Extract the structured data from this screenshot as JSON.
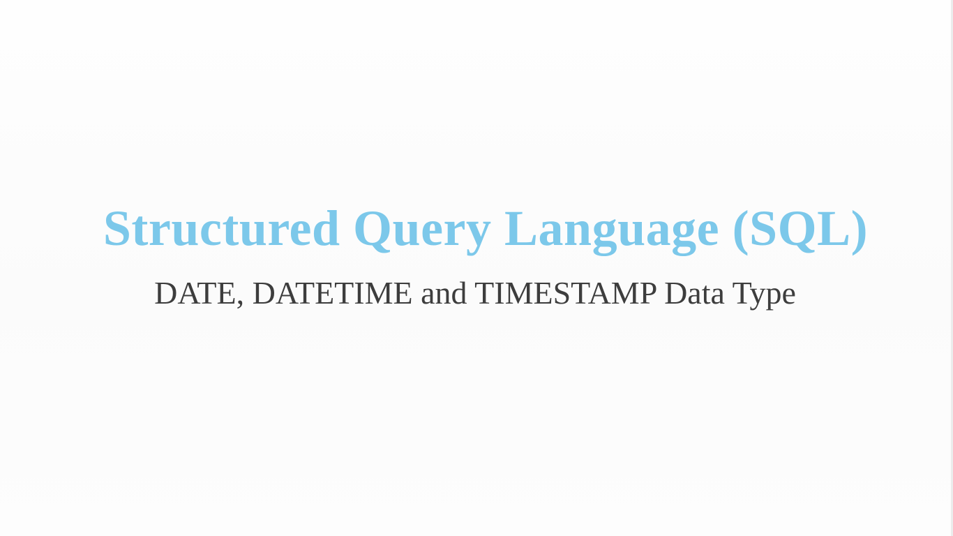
{
  "slide": {
    "title": "Structured Query Language (SQL)",
    "subtitle": "DATE, DATETIME and TIMESTAMP Data Type"
  },
  "colors": {
    "title": "#7cc8ea",
    "subtitle": "#3d3d3d",
    "background": "#fdfdfd"
  }
}
